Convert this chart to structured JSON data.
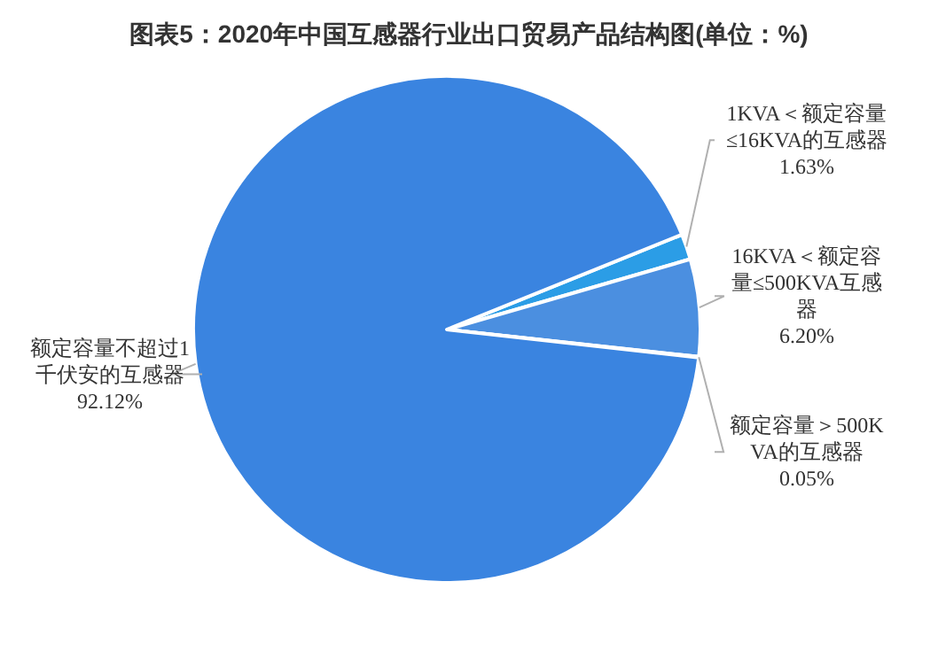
{
  "chart_data": {
    "type": "pie",
    "title": "图表5：2020年中国互感器行业出口贸易产品结构图(单位：%)",
    "categories": [
      "1KVA＜额定容量≤16KVA的互感器",
      "16KVA＜额定容量≤500KVA互感器",
      "额定容量＞500KVA的互感器",
      "额定容量不超过1千伏安的互感器"
    ],
    "values": [
      1.63,
      6.2,
      0.05,
      92.12
    ],
    "value_labels": [
      "1.63%",
      "6.20%",
      "0.05%",
      "92.12%"
    ],
    "colors": [
      "#2b9de6",
      "#4b8fe0",
      "#5b9be8",
      "#3a84e0"
    ]
  }
}
